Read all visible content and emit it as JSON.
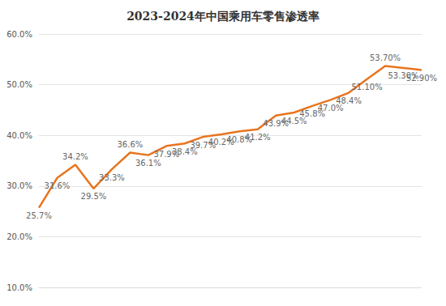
{
  "chart_data": {
    "type": "line",
    "title": "2023-2024年中国乘用车零售渗透率",
    "categories": [
      null,
      null,
      null,
      null,
      null,
      null,
      null,
      null,
      null,
      null,
      null,
      null,
      null,
      null,
      null,
      null,
      null,
      null,
      null,
      null,
      null,
      null
    ],
    "values": [
      25.7,
      31.6,
      34.2,
      29.5,
      33.3,
      36.6,
      36.1,
      37.9,
      38.4,
      39.7,
      40.2,
      40.8,
      41.2,
      43.9,
      44.5,
      45.8,
      47.0,
      48.4,
      51.1,
      53.7,
      53.3,
      52.9
    ],
    "value_labels": [
      "25.7%",
      "31.6%",
      "34.2%",
      "29.5%",
      "33.3%",
      "36.6%",
      "36.1%",
      "37.9%",
      "38.4%",
      "39.7%",
      "40.2%",
      "40.8%",
      "41.2%",
      "43.9%",
      "44.5%",
      "45.8%",
      "47.0%",
      "48.4%",
      "51.10%",
      "53.70%",
      "53.30%",
      "52.90%"
    ],
    "color": "#e8741e",
    "ylim": [
      10,
      60
    ],
    "yticks": [
      {
        "value": 10,
        "label": "10.0%"
      },
      {
        "value": 20,
        "label": "20.0%"
      },
      {
        "value": 30,
        "label": "30.0%"
      },
      {
        "value": 40,
        "label": "40.0%"
      },
      {
        "value": 50,
        "label": "50.0%"
      },
      {
        "value": 60,
        "label": "60.0%"
      }
    ],
    "grid": true,
    "data_labels": true,
    "tick_labels": "y"
  }
}
